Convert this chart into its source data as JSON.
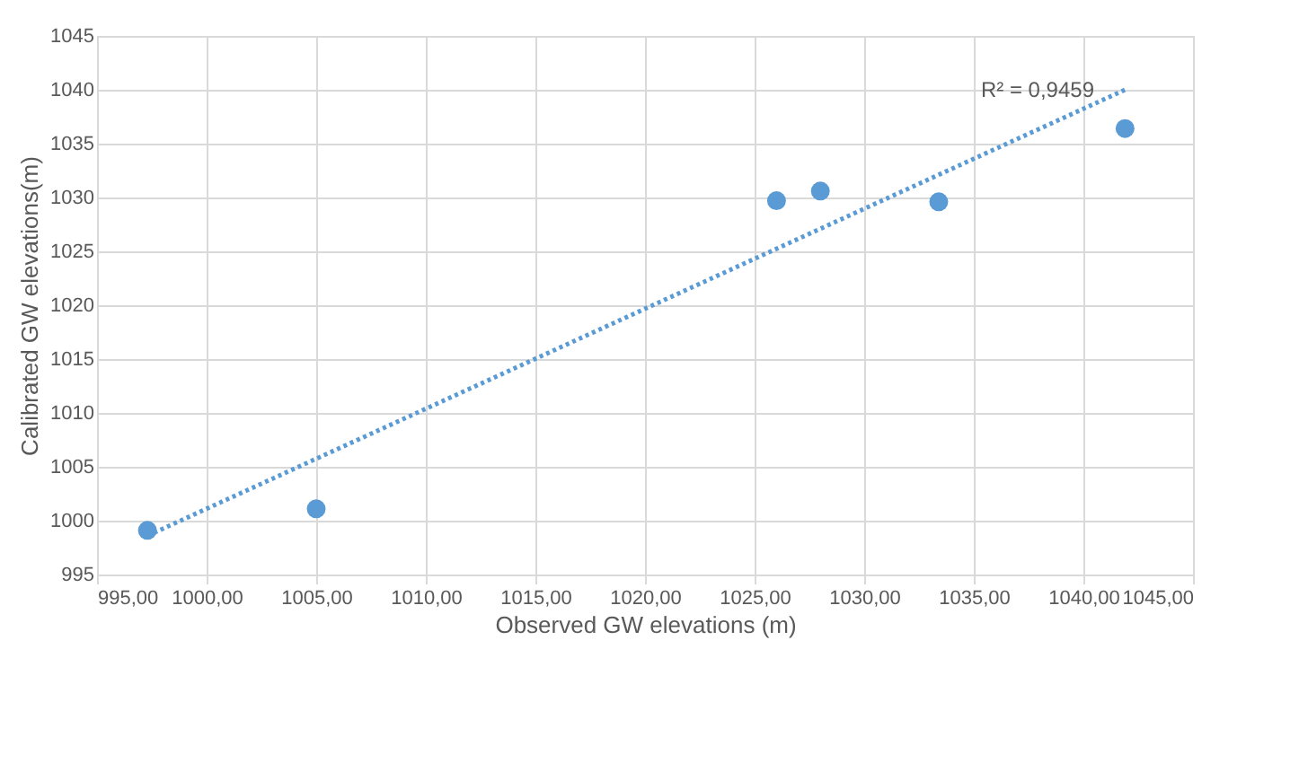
{
  "chart_data": {
    "type": "scatter",
    "xlabel": "Observed GW elevations (m)",
    "ylabel": "Calibrated GW elevations(m)",
    "series": [
      {
        "color": "#5b9bd5",
        "marker": "circle",
        "x": [
          997.3,
          1005.0,
          1026.0,
          1028.0,
          1033.4,
          1041.9
        ],
        "values": [
          999.1,
          1001.1,
          1029.7,
          1030.6,
          1029.6,
          1036.4
        ]
      },
      {
        "type": "line",
        "color": "#5b9bd5",
        "marker": "none",
        "line_style": "dotted",
        "x": [
          997.3,
          1041.9
        ],
        "values": [
          998.6,
          1040.0
        ]
      }
    ],
    "annotations": [
      "R² = 0,9459"
    ],
    "xlim": [
      995,
      1045
    ],
    "ylim": [
      995,
      1045
    ],
    "xticks": [
      {
        "value": 995,
        "label": "995,00"
      },
      {
        "value": 1000,
        "label": "1000,00"
      },
      {
        "value": 1005,
        "label": "1005,00"
      },
      {
        "value": 1010,
        "label": "1010,00"
      },
      {
        "value": 1015,
        "label": "1015,00"
      },
      {
        "value": 1020,
        "label": "1020,00"
      },
      {
        "value": 1025,
        "label": "1025,00"
      },
      {
        "value": 1030,
        "label": "1030,00"
      },
      {
        "value": 1035,
        "label": "1035,00"
      },
      {
        "value": 1040,
        "label": "1040,00"
      },
      {
        "value": 1045,
        "label": "1045,00"
      }
    ],
    "yticks": [
      995,
      1000,
      1005,
      1010,
      1015,
      1020,
      1025,
      1030,
      1035,
      1040,
      1045
    ],
    "grid": true
  }
}
